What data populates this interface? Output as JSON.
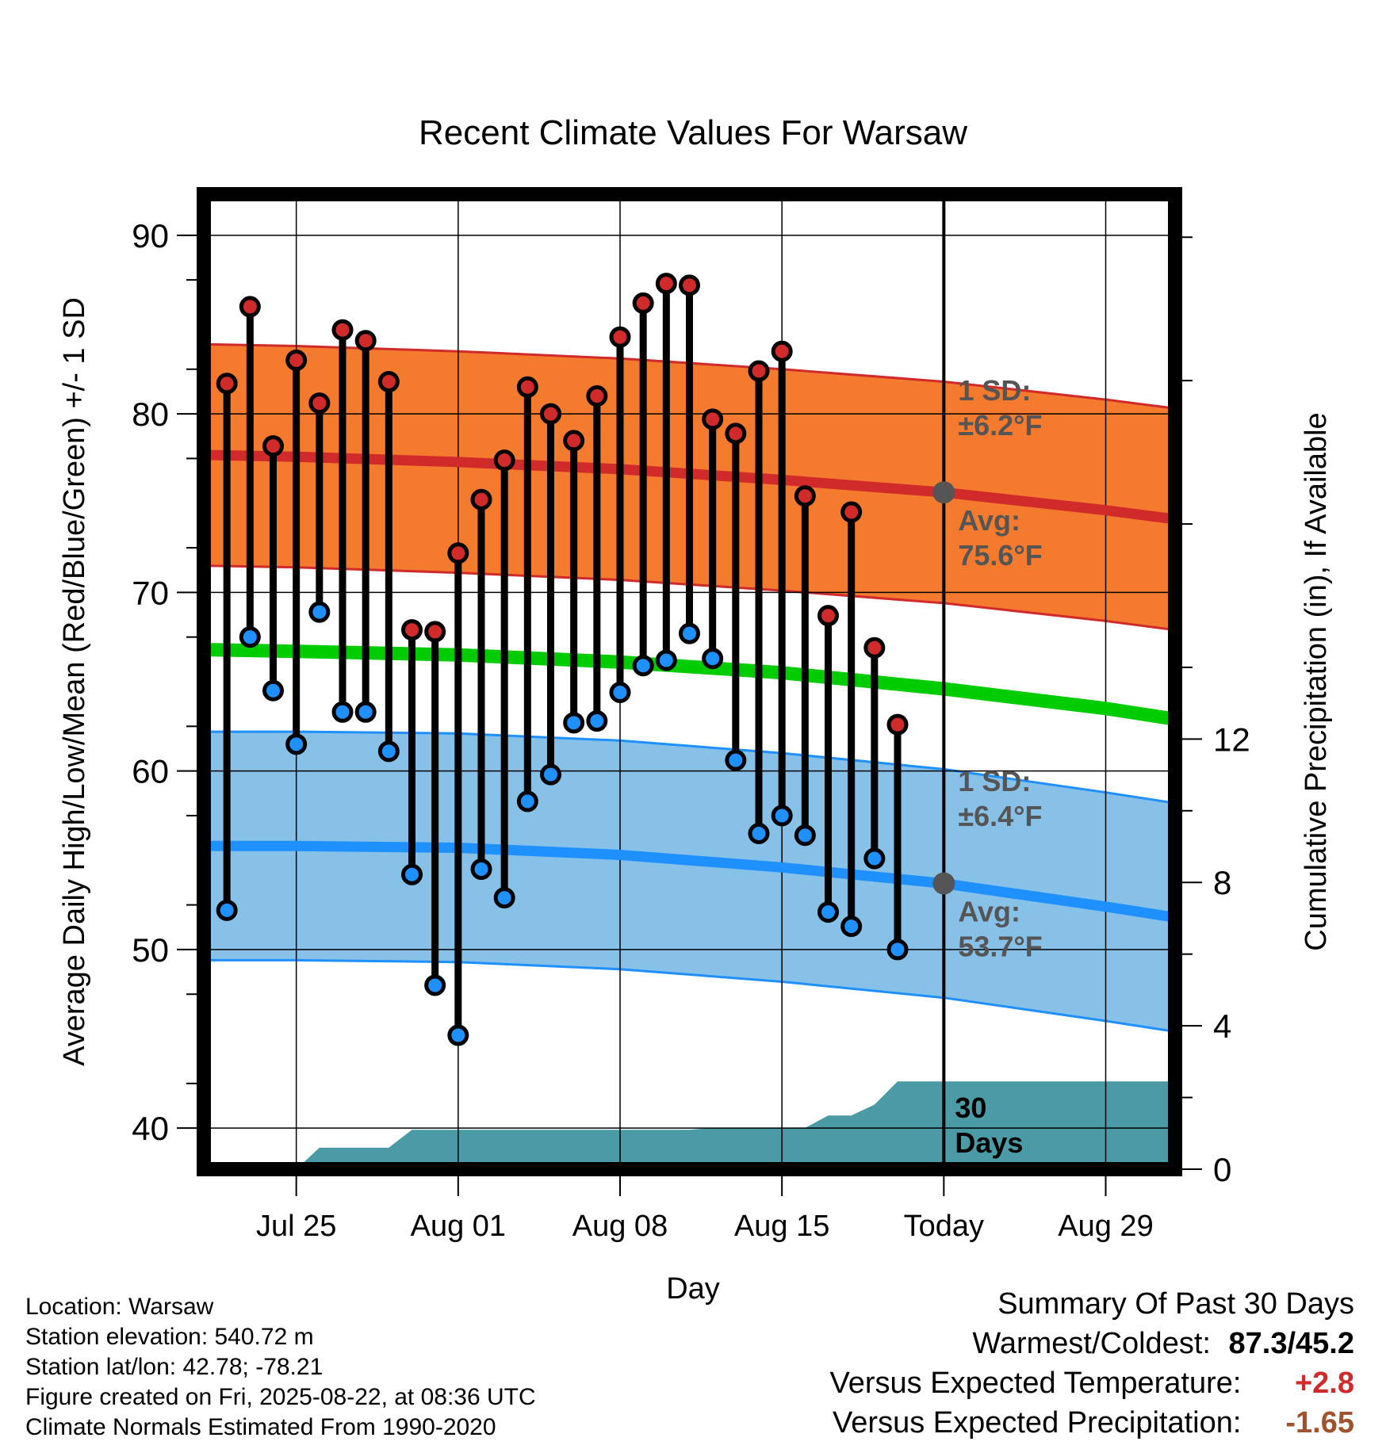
{
  "chart_data": {
    "type": "line",
    "title": "Recent Climate Values For Warsaw",
    "xlabel": "Day",
    "ylabel": "Average Daily High/Low/Mean (Red/Blue/Green) +/- 1 SD",
    "ylabel_right": "Cumulative Precipitation (in), If Available",
    "x_ticks": [
      "Jul 25",
      "Aug 01",
      "Aug 08",
      "Aug 15",
      "Today",
      "Aug 29"
    ],
    "x_tick_dates": [
      "2025-07-25",
      "2025-08-01",
      "2025-08-08",
      "2025-08-15",
      "2025-08-22",
      "2025-08-29"
    ],
    "xlim": [
      "2025-07-21",
      "2025-09-01"
    ],
    "y_ticks": [
      40,
      50,
      60,
      70,
      80,
      90
    ],
    "ylim": [
      37.7,
      92.3
    ],
    "y2_ticks": [
      0,
      4,
      8,
      12
    ],
    "y2lim": [
      0,
      27.2
    ],
    "grid": true,
    "today_date": "2025-08-22",
    "daily_obs": [
      {
        "date": "2025-07-22",
        "high": 81.7,
        "low": 52.2
      },
      {
        "date": "2025-07-23",
        "high": 86.0,
        "low": 67.5
      },
      {
        "date": "2025-07-24",
        "high": 78.2,
        "low": 64.5
      },
      {
        "date": "2025-07-25",
        "high": 83.0,
        "low": 61.5
      },
      {
        "date": "2025-07-26",
        "high": 80.6,
        "low": 68.9
      },
      {
        "date": "2025-07-27",
        "high": 84.7,
        "low": 63.3
      },
      {
        "date": "2025-07-28",
        "high": 84.1,
        "low": 63.3
      },
      {
        "date": "2025-07-29",
        "high": 81.8,
        "low": 61.1
      },
      {
        "date": "2025-07-30",
        "high": 67.9,
        "low": 54.2
      },
      {
        "date": "2025-07-31",
        "high": 67.8,
        "low": 48.0
      },
      {
        "date": "2025-08-01",
        "high": 72.2,
        "low": 45.2
      },
      {
        "date": "2025-08-02",
        "high": 75.2,
        "low": 54.5
      },
      {
        "date": "2025-08-03",
        "high": 77.4,
        "low": 52.9
      },
      {
        "date": "2025-08-04",
        "high": 81.5,
        "low": 58.3
      },
      {
        "date": "2025-08-05",
        "high": 80.0,
        "low": 59.8
      },
      {
        "date": "2025-08-06",
        "high": 78.5,
        "low": 62.7
      },
      {
        "date": "2025-08-07",
        "high": 81.0,
        "low": 62.8
      },
      {
        "date": "2025-08-08",
        "high": 84.3,
        "low": 64.4
      },
      {
        "date": "2025-08-09",
        "high": 86.2,
        "low": 65.9
      },
      {
        "date": "2025-08-10",
        "high": 87.3,
        "low": 66.2
      },
      {
        "date": "2025-08-11",
        "high": 87.2,
        "low": 67.7
      },
      {
        "date": "2025-08-12",
        "high": 79.7,
        "low": 66.3
      },
      {
        "date": "2025-08-13",
        "high": 78.9,
        "low": 60.6
      },
      {
        "date": "2025-08-14",
        "high": 82.4,
        "low": 56.5
      },
      {
        "date": "2025-08-15",
        "high": 83.5,
        "low": 57.5
      },
      {
        "date": "2025-08-16",
        "high": 75.4,
        "low": 56.4
      },
      {
        "date": "2025-08-17",
        "high": 68.7,
        "low": 52.1
      },
      {
        "date": "2025-08-18",
        "high": 74.5,
        "low": 51.3
      },
      {
        "date": "2025-08-19",
        "high": 66.9,
        "low": 55.1
      },
      {
        "date": "2025-08-20",
        "high": 62.6,
        "low": 50.0
      }
    ],
    "normals": {
      "dates": [
        "2025-07-21",
        "2025-07-25",
        "2025-08-01",
        "2025-08-08",
        "2025-08-15",
        "2025-08-22",
        "2025-08-29",
        "2025-09-01"
      ],
      "avg_high": [
        77.7,
        77.6,
        77.3,
        76.9,
        76.3,
        75.6,
        74.6,
        74.1
      ],
      "avg_low": [
        55.8,
        55.8,
        55.7,
        55.3,
        54.6,
        53.7,
        52.4,
        51.8
      ],
      "avg_mean": [
        66.8,
        66.7,
        66.5,
        66.1,
        65.5,
        64.6,
        63.5,
        62.9
      ],
      "high_sd": 6.2,
      "low_sd": 6.4
    },
    "precipitation": {
      "series": [
        {
          "date": "2025-07-21",
          "value": 0.0
        },
        {
          "date": "2025-07-25",
          "value": 0.0
        },
        {
          "date": "2025-07-26",
          "value": 0.6
        },
        {
          "date": "2025-07-29",
          "value": 0.6
        },
        {
          "date": "2025-07-30",
          "value": 1.1
        },
        {
          "date": "2025-08-11",
          "value": 1.1
        },
        {
          "date": "2025-08-12",
          "value": 1.15
        },
        {
          "date": "2025-08-16",
          "value": 1.15
        },
        {
          "date": "2025-08-17",
          "value": 1.5
        },
        {
          "date": "2025-08-18",
          "value": 1.5
        },
        {
          "date": "2025-08-19",
          "value": 1.8
        },
        {
          "date": "2025-08-20",
          "value": 2.45
        },
        {
          "date": "2025-09-01",
          "value": 2.45
        }
      ]
    },
    "annotations": {
      "high_sd_label": [
        "1 SD:",
        "±6.2°F"
      ],
      "high_avg_label": [
        "Avg:",
        "75.6°F"
      ],
      "low_sd_label": [
        "1 SD:",
        "±6.4°F"
      ],
      "low_avg_label": [
        "Avg:",
        "53.7°F"
      ],
      "precip_label": [
        "30",
        "Days"
      ]
    },
    "colors": {
      "high_band": "#f47a2e",
      "high_line": "#d12a2a",
      "low_band": "#87c1e8",
      "low_line": "#1e90ff",
      "mean_line": "#00cc00",
      "precip": "#4a9ba5",
      "high_marker": "#d12a2a",
      "low_marker": "#1e90ff",
      "annotation_text": "#555555",
      "today_marker": "#555555"
    }
  },
  "footer": {
    "location": "Location: Warsaw",
    "elevation": "Station elevation: 540.72 m",
    "latlon": "Station lat/lon: 42.78; -78.21",
    "created": "Figure created on Fri, 2025-08-22, at 08:36 UTC",
    "normals": "Climate Normals Estimated From 1990-2020"
  },
  "summary": {
    "title": "Summary Of Past 30 Days",
    "warmest_coldest_label": "Warmest/Coldest:",
    "warmest_coldest_value": "87.3/45.2",
    "temp_label": "Versus Expected Temperature:",
    "temp_value": "+2.8",
    "temp_color": "#d12a2a",
    "precip_label": "Versus Expected Precipitation:",
    "precip_value": "-1.65",
    "precip_color": "#a0522d"
  }
}
